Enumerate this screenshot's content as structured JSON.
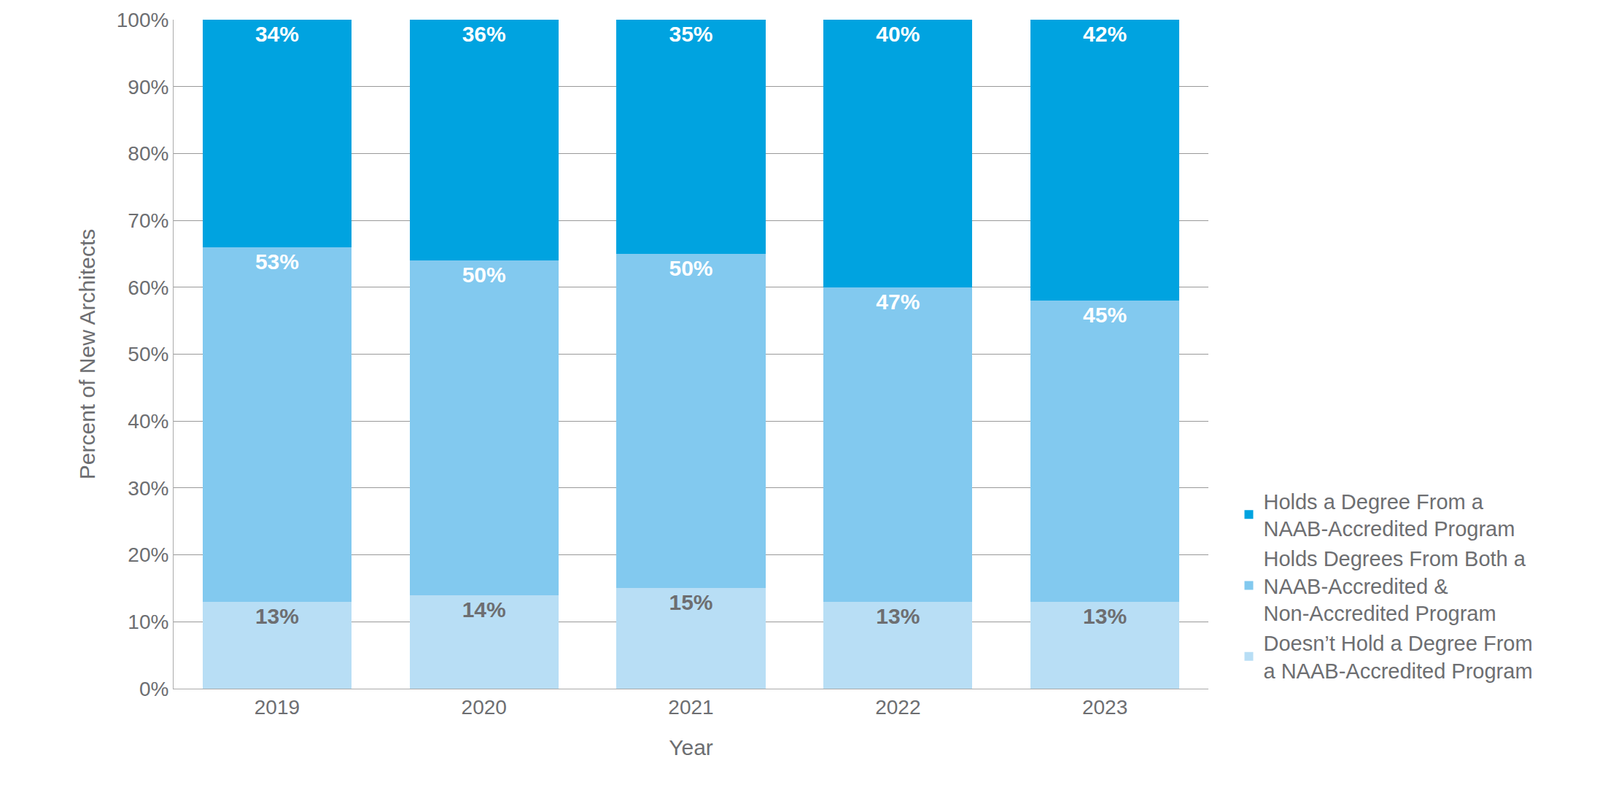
{
  "chart_data": {
    "type": "bar",
    "stacked": true,
    "data_labels": true,
    "grid": true,
    "legend": "right",
    "x_label": "Year",
    "y_label": "Percent of New Architects",
    "categories": [
      "2019",
      "2020",
      "2021",
      "2022",
      "2023"
    ],
    "ylim": [
      0,
      100
    ],
    "yticks": [
      {
        "value": 0,
        "label": "0%"
      },
      {
        "value": 10,
        "label": "10%"
      },
      {
        "value": 20,
        "label": "20%"
      },
      {
        "value": 30,
        "label": "30%"
      },
      {
        "value": 40,
        "label": "40%"
      },
      {
        "value": 50,
        "label": "50%"
      },
      {
        "value": 60,
        "label": "60%"
      },
      {
        "value": 70,
        "label": "70%"
      },
      {
        "value": 80,
        "label": "80%"
      },
      {
        "value": 90,
        "label": "90%"
      },
      {
        "value": 100,
        "label": "100%"
      }
    ],
    "series": [
      {
        "name": "Doesn’t Hold a Degree From\na NAAB-Accredited Program",
        "color": "#b8def5",
        "values": [
          13,
          14,
          15,
          13,
          13
        ],
        "value_labels": [
          "13%",
          "14%",
          "15%",
          "13%",
          "13%"
        ]
      },
      {
        "name": "Holds Degrees From Both a\nNAAB-Accredited &\nNon-Accredited Program",
        "color": "#82c9ef",
        "values": [
          53,
          50,
          50,
          47,
          45
        ],
        "value_labels": [
          "53%",
          "50%",
          "50%",
          "47%",
          "45%"
        ]
      },
      {
        "name": "Holds a Degree From a\nNAAB-Accredited Program",
        "color": "#00a3e0",
        "values": [
          34,
          36,
          35,
          40,
          42
        ],
        "value_labels": [
          "34%",
          "36%",
          "35%",
          "40%",
          "42%"
        ]
      }
    ]
  }
}
